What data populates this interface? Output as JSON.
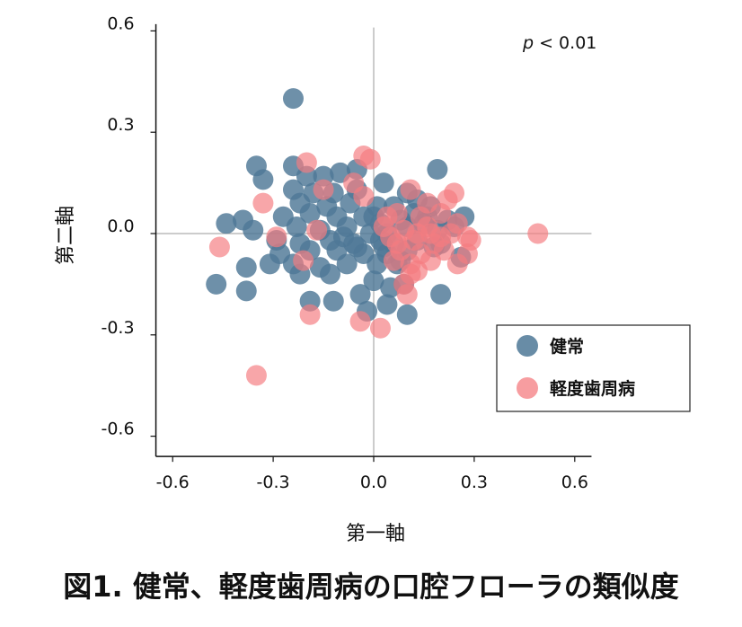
{
  "caption": "図1. 健常、軽度歯周病の口腔フローラの類似度",
  "chart_data": {
    "type": "scatter",
    "xlabel": "第一軸",
    "ylabel": "第二軸",
    "xlim": [
      -0.65,
      0.65
    ],
    "ylim": [
      -0.66,
      0.62
    ],
    "xticks": [
      -0.6,
      -0.3,
      0.0,
      0.3,
      0.6
    ],
    "xtick_labels": [
      "-0.6",
      "-0.3",
      "0.0",
      "0.3",
      "0.6"
    ],
    "yticks": [
      0.6,
      0.3,
      0.0,
      -0.3,
      -0.6
    ],
    "ytick_labels": [
      "0.6",
      "0.3",
      "0.0",
      "-0.3",
      "-0.6"
    ],
    "annotation": {
      "italic": "p",
      "text": " < 0.01"
    },
    "legend_position": "bottom-right",
    "grid": false,
    "series": [
      {
        "name": "健常",
        "color": "#4e7896",
        "points": [
          [
            -0.24,
            0.4
          ],
          [
            -0.35,
            0.2
          ],
          [
            -0.24,
            0.2
          ],
          [
            -0.33,
            0.16
          ],
          [
            -0.2,
            0.17
          ],
          [
            -0.15,
            0.17
          ],
          [
            -0.1,
            0.18
          ],
          [
            -0.05,
            0.19
          ],
          [
            0.19,
            0.19
          ],
          [
            -0.24,
            0.13
          ],
          [
            -0.18,
            0.12
          ],
          [
            -0.12,
            0.12
          ],
          [
            -0.05,
            0.13
          ],
          [
            0.03,
            0.15
          ],
          [
            0.1,
            0.12
          ],
          [
            0.13,
            0.1
          ],
          [
            -0.22,
            0.09
          ],
          [
            -0.14,
            0.08
          ],
          [
            -0.07,
            0.09
          ],
          [
            0.01,
            0.08
          ],
          [
            0.06,
            0.08
          ],
          [
            0.12,
            0.06
          ],
          [
            0.17,
            0.08
          ],
          [
            -0.27,
            0.05
          ],
          [
            -0.19,
            0.06
          ],
          [
            -0.11,
            0.05
          ],
          [
            -0.03,
            0.05
          ],
          [
            0.02,
            0.03
          ],
          [
            0.08,
            0.04
          ],
          [
            0.16,
            0.05
          ],
          [
            0.22,
            0.04
          ],
          [
            0.27,
            0.05
          ],
          [
            -0.44,
            0.03
          ],
          [
            -0.39,
            0.04
          ],
          [
            -0.36,
            0.01
          ],
          [
            -0.23,
            0.02
          ],
          [
            -0.16,
            0.01
          ],
          [
            -0.08,
            0.02
          ],
          [
            -0.01,
            0.0
          ],
          [
            0.04,
            0.0
          ],
          [
            0.1,
            0.02
          ],
          [
            0.19,
            0.01
          ],
          [
            -0.29,
            -0.02
          ],
          [
            -0.22,
            -0.03
          ],
          [
            -0.13,
            -0.02
          ],
          [
            -0.06,
            -0.03
          ],
          [
            0.02,
            -0.02
          ],
          [
            0.06,
            -0.03
          ],
          [
            0.13,
            -0.02
          ],
          [
            0.2,
            -0.03
          ],
          [
            -0.28,
            -0.06
          ],
          [
            -0.19,
            -0.05
          ],
          [
            -0.11,
            -0.05
          ],
          [
            -0.03,
            -0.06
          ],
          [
            0.04,
            -0.06
          ],
          [
            0.1,
            -0.05
          ],
          [
            0.18,
            -0.04
          ],
          [
            0.26,
            -0.07
          ],
          [
            -0.31,
            -0.09
          ],
          [
            -0.24,
            -0.09
          ],
          [
            -0.16,
            -0.1
          ],
          [
            -0.08,
            -0.09
          ],
          [
            0.01,
            -0.09
          ],
          [
            0.07,
            -0.09
          ],
          [
            -0.38,
            -0.1
          ],
          [
            -0.22,
            -0.12
          ],
          [
            -0.13,
            -0.12
          ],
          [
            -0.47,
            -0.15
          ],
          [
            -0.38,
            -0.17
          ],
          [
            0.0,
            -0.14
          ],
          [
            0.05,
            -0.16
          ],
          [
            0.09,
            -0.15
          ],
          [
            -0.19,
            -0.2
          ],
          [
            -0.12,
            -0.2
          ],
          [
            -0.04,
            -0.18
          ],
          [
            0.04,
            -0.21
          ],
          [
            0.2,
            -0.18
          ],
          [
            -0.02,
            -0.23
          ],
          [
            0.1,
            -0.24
          ],
          [
            -0.05,
            -0.04
          ],
          [
            0.0,
            0.05
          ],
          [
            0.03,
            -0.04
          ],
          [
            0.08,
            -0.08
          ],
          [
            0.15,
            0.03
          ],
          [
            0.24,
            0.02
          ],
          [
            -0.09,
            -0.01
          ]
        ]
      },
      {
        "name": "軽度歯周病",
        "color": "#f47c80",
        "points": [
          [
            -0.03,
            0.23
          ],
          [
            -0.2,
            0.21
          ],
          [
            -0.01,
            0.22
          ],
          [
            -0.33,
            0.09
          ],
          [
            -0.15,
            0.13
          ],
          [
            -0.06,
            0.15
          ],
          [
            -0.03,
            0.11
          ],
          [
            0.11,
            0.13
          ],
          [
            0.24,
            0.12
          ],
          [
            0.22,
            0.1
          ],
          [
            0.16,
            0.09
          ],
          [
            0.07,
            0.06
          ],
          [
            0.14,
            0.05
          ],
          [
            0.2,
            0.06
          ],
          [
            0.25,
            0.03
          ],
          [
            0.03,
            0.02
          ],
          [
            0.09,
            0.01
          ],
          [
            0.17,
            0.0
          ],
          [
            0.23,
            0.0
          ],
          [
            0.28,
            -0.01
          ],
          [
            0.29,
            -0.02
          ],
          [
            0.05,
            -0.01
          ],
          [
            0.12,
            -0.02
          ],
          [
            -0.29,
            -0.01
          ],
          [
            -0.17,
            0.01
          ],
          [
            -0.46,
            -0.04
          ],
          [
            0.18,
            -0.03
          ],
          [
            0.21,
            -0.05
          ],
          [
            0.08,
            -0.05
          ],
          [
            0.14,
            -0.06
          ],
          [
            0.28,
            -0.06
          ],
          [
            0.06,
            -0.08
          ],
          [
            0.11,
            -0.09
          ],
          [
            0.17,
            -0.08
          ],
          [
            -0.21,
            -0.08
          ],
          [
            0.25,
            -0.09
          ],
          [
            0.11,
            -0.12
          ],
          [
            0.13,
            -0.11
          ],
          [
            0.09,
            -0.15
          ],
          [
            0.1,
            -0.18
          ],
          [
            -0.19,
            -0.24
          ],
          [
            -0.04,
            -0.26
          ],
          [
            0.02,
            -0.28
          ],
          [
            -0.35,
            -0.42
          ],
          [
            0.49,
            0.0
          ],
          [
            0.04,
            0.05
          ],
          [
            0.16,
            0.02
          ],
          [
            0.2,
            -0.01
          ],
          [
            0.13,
            0.0
          ],
          [
            0.07,
            -0.03
          ]
        ]
      }
    ]
  }
}
